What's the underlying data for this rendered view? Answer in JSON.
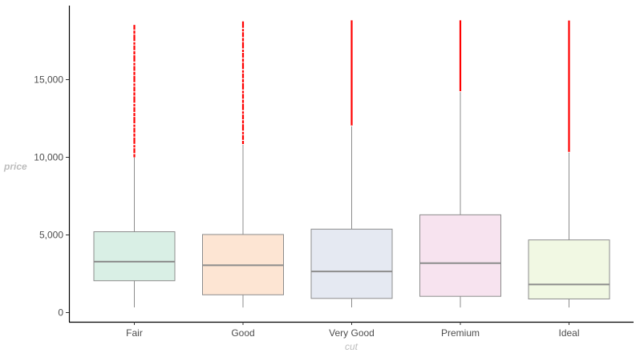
{
  "chart_data": {
    "type": "boxplot",
    "title": "",
    "xlabel": "cut",
    "ylabel": "price",
    "ylim": [
      -600,
      19700
    ],
    "yticks": [
      0,
      5000,
      10000,
      15000
    ],
    "ytick_labels": [
      "0",
      "5,000",
      "10,000",
      "15,000"
    ],
    "grid": false,
    "legend": null,
    "categories": [
      "Fair",
      "Good",
      "Very Good",
      "Premium",
      "Ideal"
    ],
    "series": [
      {
        "name": "Fair",
        "fill": "#d9efe5",
        "whisker_low": 337,
        "q1": 2050,
        "median": 3282,
        "q3": 5206,
        "whisker_high": 9990,
        "outlier_min": 10000,
        "outlier_max": 18574
      },
      {
        "name": "Good",
        "fill": "#fde5d3",
        "whisker_low": 327,
        "q1": 1145,
        "median": 3050,
        "q3": 5028,
        "whisker_high": 10800,
        "outlier_min": 10850,
        "outlier_max": 18788
      },
      {
        "name": "Very Good",
        "fill": "#e5e9f2",
        "whisker_low": 336,
        "q1": 912,
        "median": 2648,
        "q3": 5373,
        "whisker_high": 12000,
        "outlier_min": 12050,
        "outlier_max": 18818
      },
      {
        "name": "Premium",
        "fill": "#f7e3ef",
        "whisker_low": 326,
        "q1": 1046,
        "median": 3185,
        "q3": 6296,
        "whisker_high": 14200,
        "outlier_min": 14250,
        "outlier_max": 18823
      },
      {
        "name": "Ideal",
        "fill": "#f1f8e3",
        "whisker_low": 326,
        "q1": 878,
        "median": 1810,
        "q3": 4678,
        "whisker_high": 10300,
        "outlier_min": 10350,
        "outlier_max": 18806
      }
    ],
    "box_stroke": "#8c8c8c",
    "median_stroke": "#8c8c8c",
    "outlier_color": "#ff0000"
  },
  "axes": {
    "x_title": "cut",
    "y_title": "price"
  }
}
